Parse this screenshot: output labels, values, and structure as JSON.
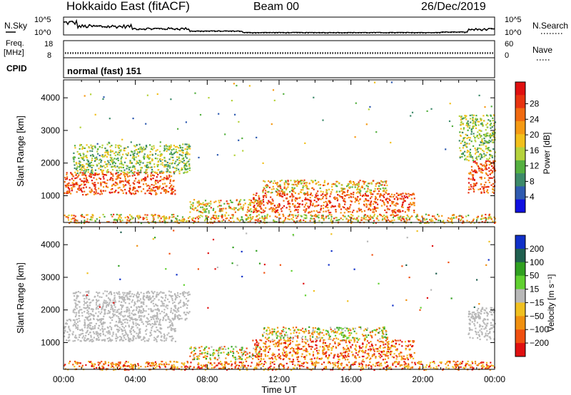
{
  "header": {
    "site": "Hokkaido East (fitACF)",
    "beam": "Beam 00",
    "date": "26/Dec/2019"
  },
  "nsky_panel": {
    "left_label": "N.Sky",
    "right_label": "N.Search",
    "left_ticks": [
      "10^5",
      "10^0"
    ],
    "right_ticks": [
      "10^5",
      "10^0"
    ],
    "trace_color": "#000000"
  },
  "freq_panel": {
    "label_line1": "Freq.",
    "label_line2": "[MHz]",
    "left_ticks": [
      "18",
      "8"
    ],
    "right_label": "Nave",
    "right_ticks": [
      "60",
      "0"
    ],
    "freq_dotted_level_mhz": 10.5,
    "nave_dotted_level": 3
  },
  "cpid_panel": {
    "label": "CPID",
    "program": "normal (fast) 151"
  },
  "chart_data": [
    {
      "type": "heatmap",
      "name": "power",
      "ylabel": "Slant Range [km]",
      "ylim": [
        180,
        4550
      ],
      "yticks": [
        "1000",
        "2000",
        "3000",
        "4000"
      ],
      "xlim": [
        "00:00",
        "24:00"
      ],
      "colorbar_label": "Power [dB]",
      "colorbar_ticks": [
        "4",
        "8",
        "12",
        "16",
        "20",
        "24",
        "28"
      ],
      "colorbar_colors": [
        "#1010e0",
        "#2f5bb0",
        "#3d8a6a",
        "#55b040",
        "#b5d23c",
        "#f2c01c",
        "#f59a14",
        "#f06a10",
        "#e83410",
        "#e01010"
      ],
      "scatter_regions": [
        {
          "t_start": 0.0,
          "t_end": 6.2,
          "r_min": 1050,
          "r_max": 1750,
          "level": "high"
        },
        {
          "t_start": 0.5,
          "t_end": 7.0,
          "r_min": 1700,
          "r_max": 2600,
          "level": "low"
        },
        {
          "t_start": 7.0,
          "t_end": 11.0,
          "r_min": 500,
          "r_max": 900,
          "level": "medium"
        },
        {
          "t_start": 10.5,
          "t_end": 19.5,
          "r_min": 500,
          "r_max": 1100,
          "level": "high"
        },
        {
          "t_start": 11.0,
          "t_end": 18.0,
          "r_min": 1100,
          "r_max": 1500,
          "level": "medium"
        },
        {
          "t_start": 0.0,
          "t_end": 24.0,
          "r_min": 180,
          "r_max": 450,
          "level": "medium"
        },
        {
          "t_start": 22.5,
          "t_end": 24.0,
          "r_min": 1100,
          "r_max": 2100,
          "level": "high"
        },
        {
          "t_start": 22.0,
          "t_end": 24.0,
          "r_min": 2100,
          "r_max": 3500,
          "level": "low"
        },
        {
          "t_start": 0.0,
          "t_end": 24.0,
          "r_min": 2000,
          "r_max": 4500,
          "level": "sparse"
        }
      ]
    },
    {
      "type": "heatmap",
      "name": "velocity",
      "ylabel": "Slant Range [km]",
      "ylim": [
        180,
        4550
      ],
      "yticks": [
        "1000",
        "2000",
        "3000",
        "4000"
      ],
      "xlabel": "Time UT",
      "xticks": [
        "00:00",
        "04:00",
        "08:00",
        "12:00",
        "16:00",
        "20:00",
        "00:00"
      ],
      "xlim": [
        "00:00",
        "24:00"
      ],
      "colorbar_label": "Velocity [m s⁻¹]",
      "colorbar_ticks": [
        "200",
        "100",
        "50",
        "15",
        "−15",
        "−50",
        "−100",
        "−200"
      ],
      "colorbar_colors": [
        "#1030c8",
        "#206050",
        "#30a020",
        "#60d030",
        "#b8b8b8",
        "#f0c020",
        "#f09010",
        "#f05010",
        "#e01010"
      ],
      "scatter_regions": [
        {
          "t_start": 0.0,
          "t_end": 6.2,
          "r_min": 1050,
          "r_max": 1750,
          "level": "ground"
        },
        {
          "t_start": 0.5,
          "t_end": 7.0,
          "r_min": 1700,
          "r_max": 2600,
          "level": "ground"
        },
        {
          "t_start": 7.0,
          "t_end": 11.0,
          "r_min": 500,
          "r_max": 900,
          "level": "mixed"
        },
        {
          "t_start": 10.5,
          "t_end": 19.5,
          "r_min": 500,
          "r_max": 1100,
          "level": "negative"
        },
        {
          "t_start": 11.0,
          "t_end": 18.0,
          "r_min": 1100,
          "r_max": 1500,
          "level": "mixed"
        },
        {
          "t_start": 0.0,
          "t_end": 24.0,
          "r_min": 180,
          "r_max": 450,
          "level": "negative"
        },
        {
          "t_start": 22.5,
          "t_end": 24.0,
          "r_min": 1100,
          "r_max": 2100,
          "level": "ground"
        },
        {
          "t_start": 0.0,
          "t_end": 24.0,
          "r_min": 2000,
          "r_max": 4500,
          "level": "sparse"
        }
      ]
    }
  ]
}
